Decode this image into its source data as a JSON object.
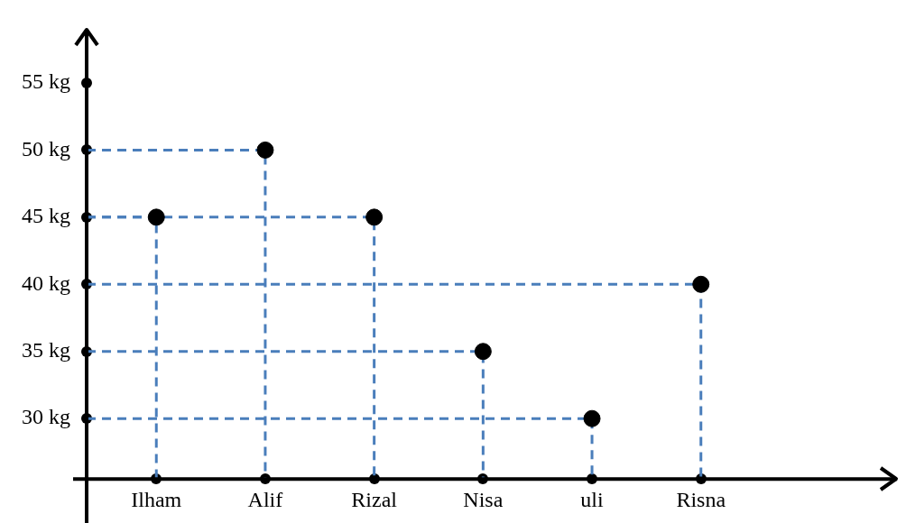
{
  "chart_data": {
    "type": "lollipop",
    "categories": [
      "Ilham",
      "Alif",
      "Rizal",
      "Nisa",
      "uli",
      "Risna"
    ],
    "series": [
      {
        "color": "#000000",
        "values": [
          45,
          50,
          45,
          35,
          30,
          40
        ]
      }
    ],
    "ylim": [
      25.5,
      59
    ],
    "yticks": [
      {
        "value": 30,
        "label": "30 kg"
      },
      {
        "value": 35,
        "label": "35 kg"
      },
      {
        "value": 40,
        "label": "40 kg"
      },
      {
        "value": 45,
        "label": "45 kg"
      },
      {
        "value": 50,
        "label": "50 kg"
      },
      {
        "value": 55,
        "label": "55 kg"
      }
    ],
    "grid": false,
    "legend": false,
    "marker": "circle",
    "line_style": "dashed"
  }
}
